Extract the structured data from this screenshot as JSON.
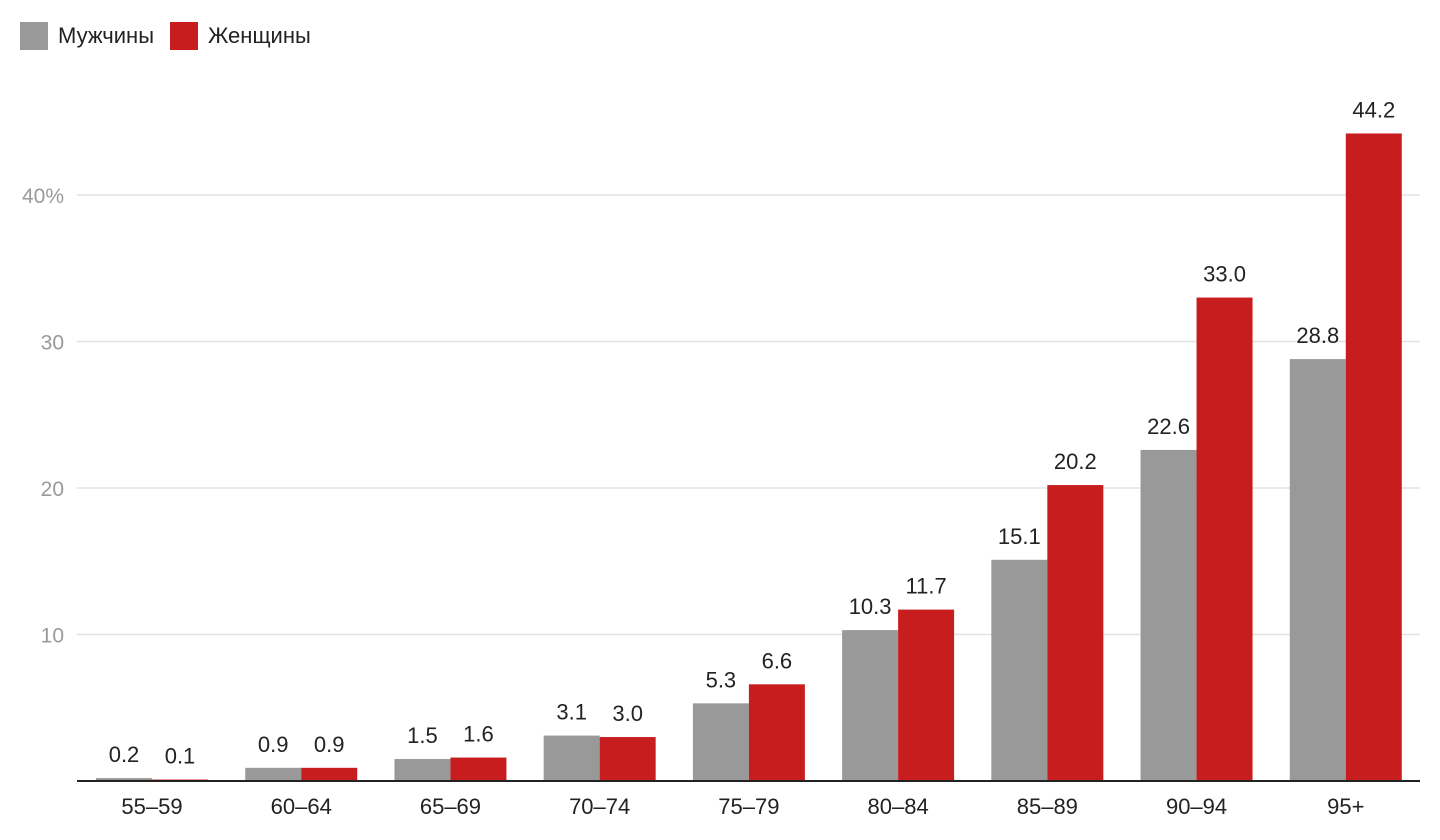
{
  "chart_data": {
    "type": "bar",
    "categories": [
      "55–59",
      "60–64",
      "65–69",
      "70–74",
      "75–79",
      "80–84",
      "85–89",
      "90–94",
      "95+"
    ],
    "series": [
      {
        "name": "Мужчины",
        "color": "#999999",
        "values": [
          0.2,
          0.9,
          1.5,
          3.1,
          5.3,
          10.3,
          15.1,
          22.6,
          28.8
        ],
        "labels": [
          "0.2",
          "0.9",
          "1.5",
          "3.1",
          "5.3",
          "10.3",
          "15.1",
          "22.6",
          "28.8"
        ]
      },
      {
        "name": "Женщины",
        "color": "#c81d1f",
        "values": [
          0.1,
          0.9,
          1.6,
          3.0,
          6.6,
          11.7,
          20.2,
          33.0,
          44.2
        ],
        "labels": [
          "0.1",
          "0.9",
          "1.6",
          "3.0",
          "6.6",
          "11.7",
          "20.2",
          "33.0",
          "44.2"
        ]
      }
    ],
    "yticks": [
      {
        "value": 10,
        "label": "10"
      },
      {
        "value": 20,
        "label": "20"
      },
      {
        "value": 30,
        "label": "30"
      },
      {
        "value": 40,
        "label": "40%"
      }
    ],
    "ylim": [
      0,
      46
    ],
    "grid": true,
    "legend_position": "top-left",
    "title": "",
    "xlabel": "",
    "ylabel": ""
  }
}
